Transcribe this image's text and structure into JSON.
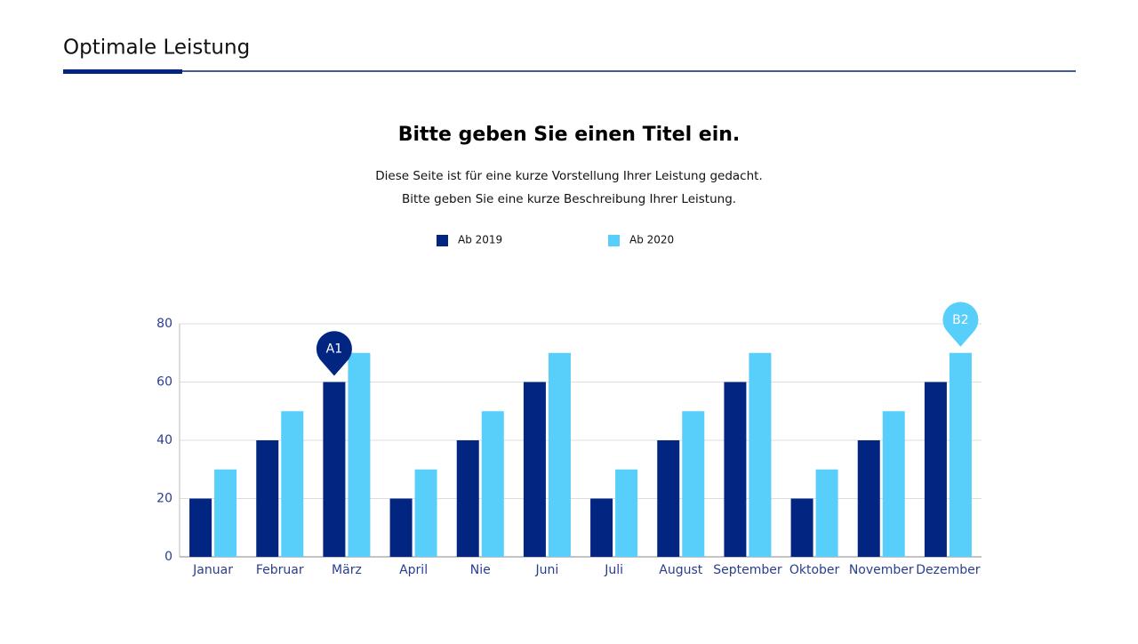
{
  "header": {
    "title": "Optimale Leistung"
  },
  "chart_data": {
    "type": "bar",
    "title": "Bitte geben Sie einen Titel ein.",
    "subtitle": [
      "Diese Seite ist für eine kurze Vorstellung Ihrer Leistung gedacht.",
      "Bitte geben Sie eine kurze Beschreibung Ihrer Leistung."
    ],
    "categories": [
      "Januar",
      "Februar",
      "März",
      "April",
      "Nie",
      "Juni",
      "Juli",
      "August",
      "September",
      "Oktober",
      "November",
      "Dezember"
    ],
    "series": [
      {
        "name": "Ab 2019",
        "color": "#022581",
        "values": [
          20,
          40,
          60,
          20,
          40,
          60,
          20,
          40,
          60,
          20,
          40,
          60
        ]
      },
      {
        "name": "Ab 2020",
        "color": "#58cefb",
        "values": [
          30,
          50,
          70,
          30,
          50,
          70,
          30,
          50,
          70,
          30,
          50,
          70
        ]
      }
    ],
    "ylim": [
      0,
      80
    ],
    "yticks": [
      0,
      20,
      40,
      60,
      80
    ],
    "grid": true,
    "annotations": [
      {
        "text": "A1",
        "category": "März",
        "series": "Ab 2019"
      },
      {
        "text": "B2",
        "category": "Dezember",
        "series": "Ab 2020"
      }
    ]
  }
}
